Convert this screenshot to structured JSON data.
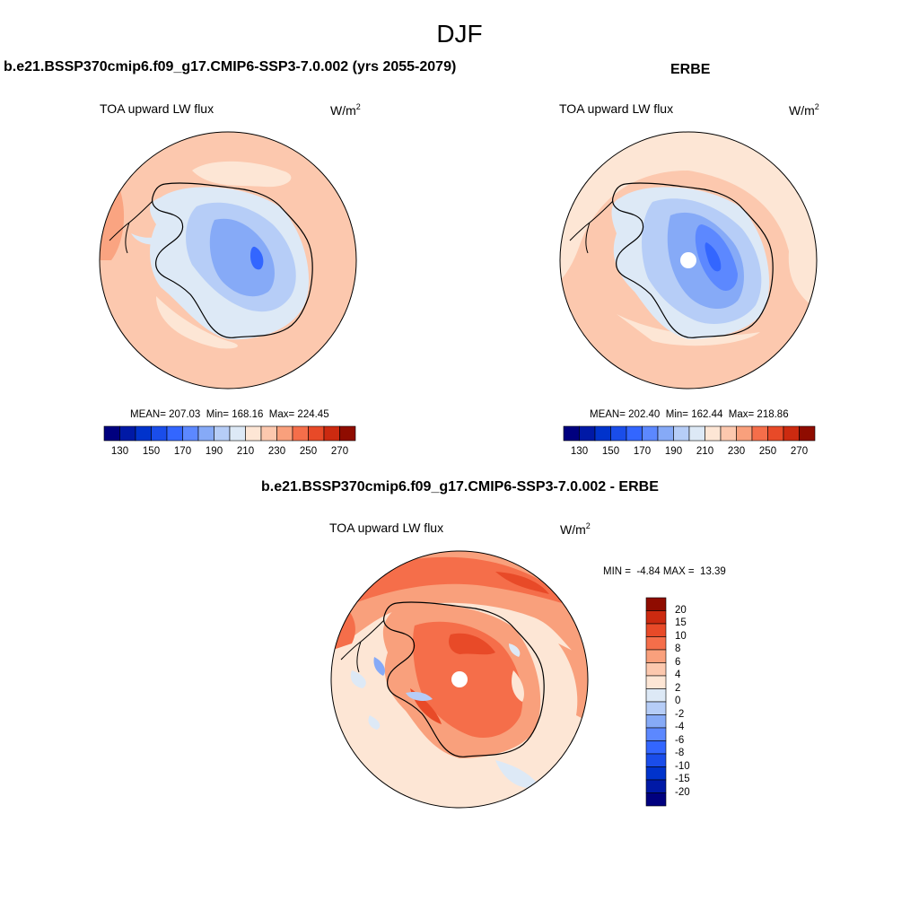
{
  "page": {
    "title": "DJF"
  },
  "panels": [
    {
      "title": "b.e21.BSSP370cmip6.f09_g17.CMIP6-SSP3-7.0.002 (yrs 2055-2079)",
      "variable": "TOA upward LW flux",
      "unit_base": "W/m",
      "unit_exp": "2",
      "stats": {
        "mean": "207.03",
        "min": "168.16",
        "max": "224.45"
      }
    },
    {
      "title": "ERBE",
      "variable": "TOA upward LW flux",
      "unit_base": "W/m",
      "unit_exp": "2",
      "stats": {
        "mean": "202.40",
        "min": "162.44",
        "max": "218.86"
      }
    },
    {
      "title": "b.e21.BSSP370cmip6.f09_g17.CMIP6-SSP3-7.0.002 - ERBE",
      "variable": "TOA upward LW flux",
      "unit_base": "W/m",
      "unit_exp": "2",
      "stats": {
        "min": "-4.84",
        "max": "13.39"
      }
    }
  ],
  "labels": {
    "mean_prefix": "MEAN=",
    "min_prefix": "Min=",
    "max_prefix": "Max=",
    "diff_min_prefix": "MIN =",
    "diff_max_prefix": "MAX ="
  },
  "chart_data": [
    {
      "type": "heatmap",
      "projection": "south polar stereographic",
      "field": "TOA upward LW flux, model",
      "colorbar": {
        "orientation": "horizontal",
        "levels": [
          130,
          140,
          150,
          160,
          170,
          180,
          190,
          200,
          210,
          220,
          230,
          240,
          250,
          260,
          270
        ],
        "tick_labels": [
          "130",
          "150",
          "170",
          "190",
          "210",
          "230",
          "250",
          "270"
        ],
        "colors": [
          "#00007f",
          "#0019a6",
          "#0033cc",
          "#1a4dea",
          "#3366ff",
          "#5c88ff",
          "#86aaf7",
          "#b6cdf7",
          "#dde9f6",
          "#fde6d5",
          "#fcc8ae",
          "#f9a07c",
          "#f56e4a",
          "#e84a28",
          "#cc2a10",
          "#8f0c00"
        ]
      }
    },
    {
      "type": "heatmap",
      "projection": "south polar stereographic",
      "field": "TOA upward LW flux, ERBE",
      "colorbar": {
        "orientation": "horizontal",
        "levels": [
          130,
          140,
          150,
          160,
          170,
          180,
          190,
          200,
          210,
          220,
          230,
          240,
          250,
          260,
          270
        ],
        "tick_labels": [
          "130",
          "150",
          "170",
          "190",
          "210",
          "230",
          "250",
          "270"
        ],
        "colors": [
          "#00007f",
          "#0019a6",
          "#0033cc",
          "#1a4dea",
          "#3366ff",
          "#5c88ff",
          "#86aaf7",
          "#b6cdf7",
          "#dde9f6",
          "#fde6d5",
          "#fcc8ae",
          "#f9a07c",
          "#f56e4a",
          "#e84a28",
          "#cc2a10",
          "#8f0c00"
        ]
      }
    },
    {
      "type": "heatmap",
      "projection": "south polar stereographic",
      "field": "TOA upward LW flux, model minus ERBE",
      "colorbar": {
        "orientation": "vertical",
        "levels": [
          -20,
          -15,
          -10,
          -8,
          -6,
          -4,
          -2,
          0,
          2,
          4,
          6,
          8,
          10,
          15,
          20
        ],
        "tick_labels": [
          "20",
          "15",
          "10",
          "8",
          "6",
          "4",
          "2",
          "0",
          "-2",
          "-4",
          "-6",
          "-8",
          "-10",
          "-15",
          "-20"
        ],
        "colors": [
          "#00007f",
          "#0019a6",
          "#0033cc",
          "#1a4dea",
          "#3366ff",
          "#5c88ff",
          "#86aaf7",
          "#b6cdf7",
          "#dde9f6",
          "#fde6d5",
          "#fcc8ae",
          "#f9a07c",
          "#f56e4a",
          "#e84a28",
          "#cc2a10",
          "#8f0c00"
        ]
      }
    }
  ]
}
